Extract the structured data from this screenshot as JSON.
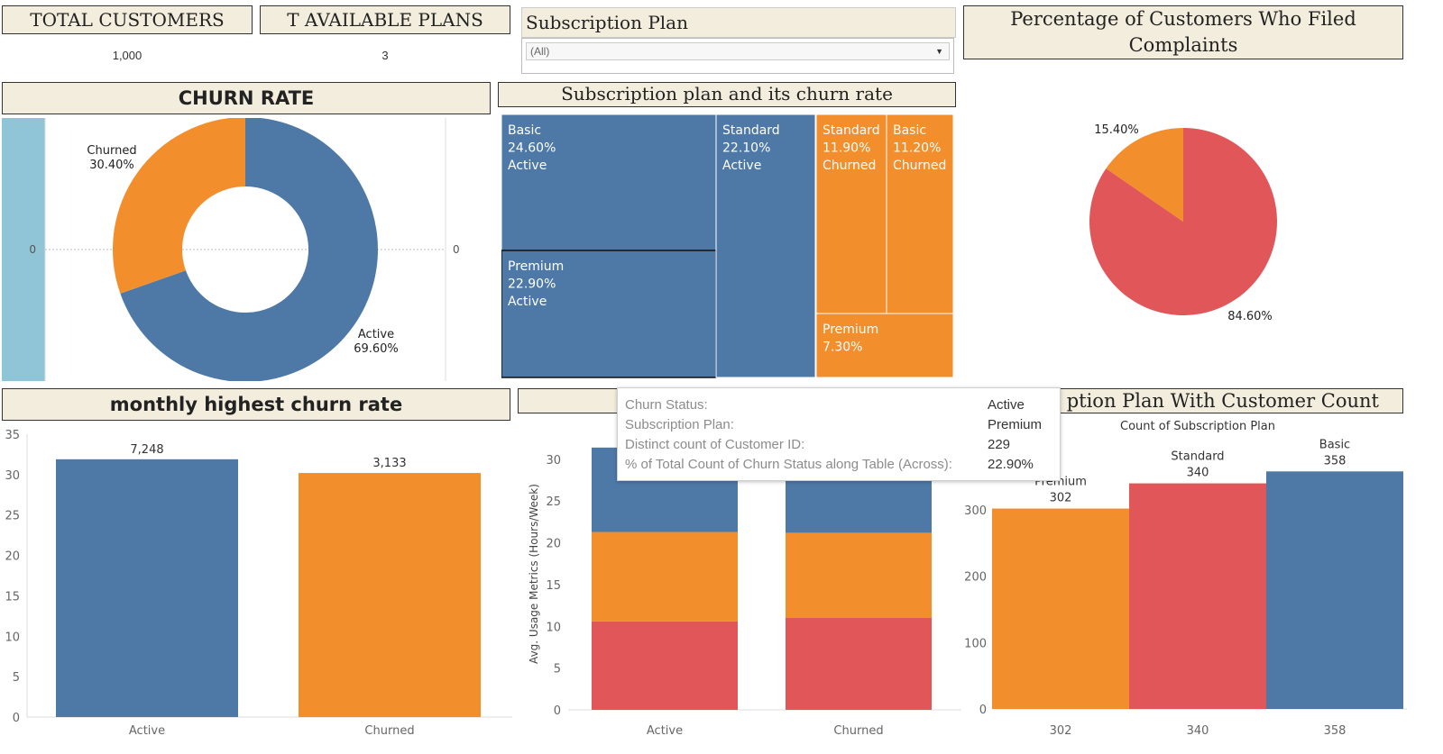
{
  "kpis": {
    "total_customers": {
      "label": "TOTAL CUSTOMERS",
      "value": "1,000"
    },
    "available_plans": {
      "label": "T AVAILABLE PLANS",
      "value": "3"
    }
  },
  "filter": {
    "title": "Subscription Plan",
    "selected": "(All)"
  },
  "colors": {
    "blue": "#4e79a7",
    "orange": "#f28e2b",
    "red": "#e15759",
    "lightblue": "#8fc5d6",
    "header_bg": "#f3eddd"
  },
  "headers": {
    "churn_rate": "CHURN RATE",
    "treemap": "Subscription plan and its churn rate",
    "complaints": "Percentage of Customers Who Filed Complaints",
    "monthly": "monthly highest churn rate",
    "plan_count": "ption Plan With Customer Count"
  },
  "tooltip": {
    "rows": [
      {
        "key": "Churn Status:",
        "value": "Active"
      },
      {
        "key": "Subscription Plan:",
        "value": "Premium"
      },
      {
        "key": "Distinct count of Customer ID:",
        "value": "229"
      },
      {
        "key": "% of Total Count of Churn Status along Table (Across):",
        "value": "22.90%"
      }
    ]
  },
  "chart_data": [
    {
      "id": "churn_donut",
      "type": "pie",
      "title": "CHURN RATE",
      "slices": [
        {
          "label": "Active",
          "pct_label": "69.60%",
          "value": 69.6,
          "color": "#4e79a7"
        },
        {
          "label": "Churned",
          "pct_label": "30.40%",
          "value": 30.4,
          "color": "#f28e2b"
        }
      ],
      "axis_ticks": {
        "left": "0",
        "right": "0"
      }
    },
    {
      "id": "plan_treemap",
      "type": "heatmap",
      "title": "Subscription plan and its churn rate",
      "cells": [
        {
          "plan": "Basic",
          "pct": "24.60%",
          "status": "Active",
          "value": 24.6,
          "color": "#4e79a7"
        },
        {
          "plan": "Premium",
          "pct": "22.90%",
          "status": "Active",
          "value": 22.9,
          "color": "#4e79a7"
        },
        {
          "plan": "Standard",
          "pct": "22.10%",
          "status": "Active",
          "value": 22.1,
          "color": "#4e79a7"
        },
        {
          "plan": "Standard",
          "pct": "11.90%",
          "status": "Churned",
          "value": 11.9,
          "color": "#f28e2b"
        },
        {
          "plan": "Basic",
          "pct": "11.20%",
          "status": "Churned",
          "value": 11.2,
          "color": "#f28e2b"
        },
        {
          "plan": "Premium",
          "pct": "7.30%",
          "status": "",
          "value": 7.3,
          "color": "#f28e2b"
        }
      ]
    },
    {
      "id": "complaints_pie",
      "type": "pie",
      "title": "Percentage of Customers Who Filed Complaints",
      "slices": [
        {
          "label": "84.60%",
          "value": 84.6,
          "color": "#e15759"
        },
        {
          "label": "15.40%",
          "value": 15.4,
          "color": "#f28e2b"
        }
      ]
    },
    {
      "id": "monthly_bar",
      "type": "bar",
      "title": "monthly highest churn rate",
      "categories": [
        "Active",
        "Churned"
      ],
      "values": [
        31.9,
        30.2
      ],
      "data_labels": [
        "7,248",
        "3,133"
      ],
      "colors": [
        "#4e79a7",
        "#f28e2b"
      ],
      "ylim": [
        0,
        35
      ],
      "yticks": [
        0,
        5,
        10,
        15,
        20,
        25,
        30,
        35
      ]
    },
    {
      "id": "usage_stacked",
      "type": "bar",
      "stacked": true,
      "ylabel": "Avg. Usage Metrics (Hours/Week)",
      "categories": [
        "Active",
        "Churned"
      ],
      "series": [
        {
          "values": [
            10.6,
            11.0
          ],
          "color": "#e15759"
        },
        {
          "values": [
            10.7,
            10.2
          ],
          "color": "#f28e2b"
        },
        {
          "values": [
            10.1,
            9.7
          ],
          "color": "#4e79a7"
        }
      ],
      "ylim": [
        0,
        33
      ],
      "yticks": [
        0,
        5,
        10,
        15,
        20,
        25,
        30
      ]
    },
    {
      "id": "plan_count_bar",
      "type": "bar",
      "subtitle": "Count of Subscription Plan",
      "categories": [
        "302",
        "340",
        "358"
      ],
      "plans": [
        "Premium",
        "Standard",
        "Basic"
      ],
      "values": [
        302,
        340,
        358
      ],
      "data_labels": [
        "302",
        "340",
        "358"
      ],
      "colors": [
        "#f28e2b",
        "#e15759",
        "#4e79a7"
      ],
      "ylim": [
        0,
        400
      ],
      "yticks": [
        0,
        100,
        200,
        300
      ]
    }
  ]
}
